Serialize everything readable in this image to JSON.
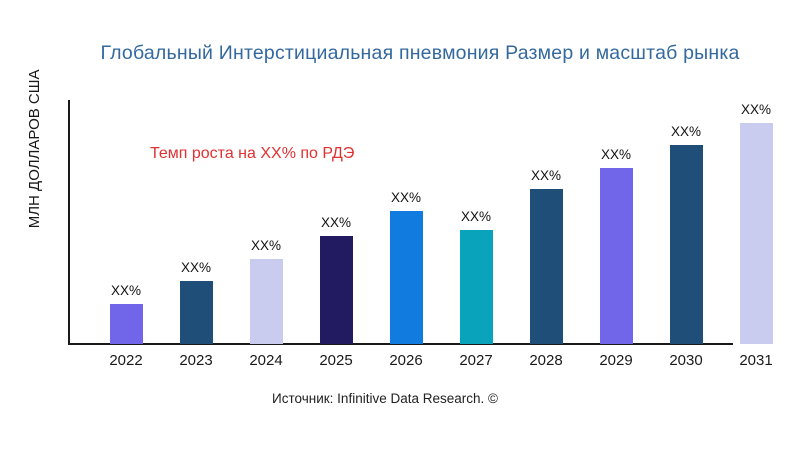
{
  "page": {
    "source": "Источник: Infinitive Data Research. ©"
  },
  "colors": {
    "title": "#33699E",
    "annotation": "#E03131",
    "axis": "#1A1A1A",
    "background": "#FFFFFF"
  },
  "chart_data": {
    "type": "bar",
    "title": "Глобальный Интерстициальная пневмония Размер и масштаб рынка",
    "ylabel": "МЛН ДОЛЛАРОВ США",
    "xlabel": "",
    "categories": [
      "2022",
      "2023",
      "2024",
      "2025",
      "2026",
      "2027",
      "2028",
      "2029",
      "2030",
      "2031"
    ],
    "bar_value_labels": [
      "XX%",
      "XX%",
      "XX%",
      "XX%",
      "XX%",
      "XX%",
      "XX%",
      "XX%",
      "XX%",
      "XX%"
    ],
    "relative_heights": [
      18,
      28.5,
      38.5,
      49,
      60,
      51.5,
      70,
      79.5,
      90,
      100
    ],
    "bar_colors": [
      "#7165EA",
      "#1F4E79",
      "#C9CCEE",
      "#221B62",
      "#127BDF",
      "#09A3BC",
      "#1F4E79",
      "#7165EA",
      "#1F4E79",
      "#C9CCEE"
    ],
    "annotation": "Темп роста на XX% по РДЭ",
    "legend": false,
    "grid": false,
    "y_tick_labels_visible": false
  }
}
